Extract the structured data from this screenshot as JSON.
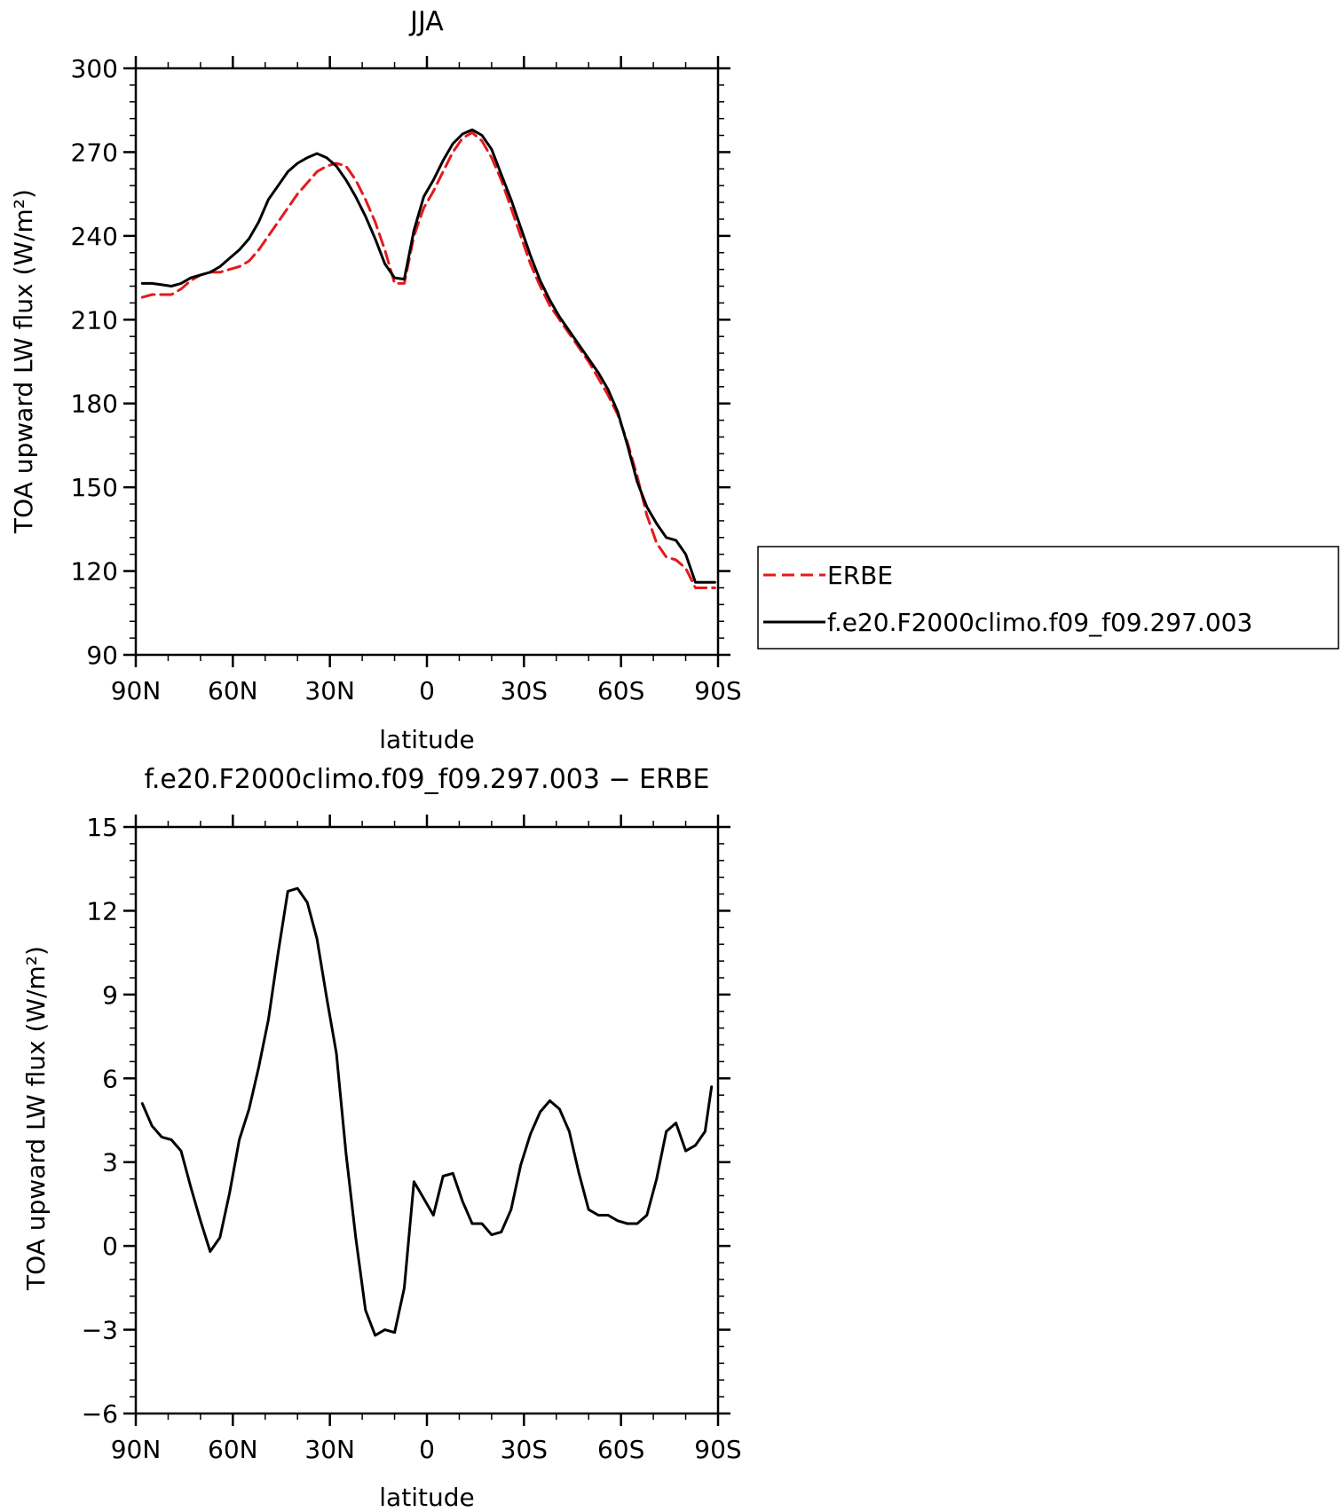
{
  "chart_data": [
    {
      "type": "line",
      "title": "JJA",
      "xlabel": "latitude",
      "ylabel": "TOA upward LW flux (W/m²)",
      "xlim": [
        90,
        -90
      ],
      "ylim": [
        90,
        300
      ],
      "x_ticks": [
        {
          "value": 90,
          "label": "90N"
        },
        {
          "value": 60,
          "label": "60N"
        },
        {
          "value": 30,
          "label": "30N"
        },
        {
          "value": 0,
          "label": "0"
        },
        {
          "value": -30,
          "label": "30S"
        },
        {
          "value": -60,
          "label": "60S"
        },
        {
          "value": -90,
          "label": "90S"
        }
      ],
      "y_ticks": [
        90,
        120,
        150,
        180,
        210,
        240,
        270,
        300
      ],
      "legend_position": "right",
      "series": [
        {
          "name": "ERBE",
          "color": "#e41a1c",
          "dash": "dashed",
          "x": [
            88,
            85,
            82,
            79,
            76,
            73,
            70,
            67,
            64,
            61,
            58,
            55,
            52,
            49,
            46,
            43,
            40,
            37,
            34,
            31,
            28,
            25,
            22,
            19,
            16,
            13,
            10,
            7,
            4,
            1,
            -2,
            -5,
            -8,
            -11,
            -14,
            -17,
            -20,
            -23,
            -26,
            -29,
            -32,
            -35,
            -38,
            -41,
            -44,
            -47,
            -50,
            -53,
            -56,
            -59,
            -62,
            -65,
            -68,
            -71,
            -74,
            -77,
            -80,
            -83,
            -86,
            -89
          ],
          "y": [
            218,
            219,
            219,
            219,
            221,
            224,
            226,
            227,
            227,
            228,
            229,
            231,
            235,
            240,
            245,
            250,
            255,
            259,
            263,
            265,
            266,
            265,
            260,
            253,
            245,
            235,
            223,
            223,
            240,
            250,
            256,
            263,
            270,
            275,
            277,
            274,
            268,
            260,
            250,
            240,
            230,
            222,
            215,
            210,
            205,
            200,
            195,
            189,
            183,
            176,
            166,
            154,
            140,
            130,
            125,
            124,
            121,
            114,
            114,
            114
          ],
          "x_ext": null
        },
        {
          "name": "f.e20.F2000climo.f09_f09.297.003",
          "color": "#000000",
          "dash": "solid",
          "x": [
            88,
            85,
            82,
            79,
            76,
            73,
            70,
            67,
            64,
            61,
            58,
            55,
            52,
            49,
            46,
            43,
            40,
            37,
            34,
            31,
            28,
            25,
            22,
            19,
            16,
            13,
            10,
            7,
            4,
            1,
            -2,
            -5,
            -8,
            -11,
            -14,
            -17,
            -20,
            -23,
            -26,
            -29,
            -32,
            -35,
            -38,
            -41,
            -44,
            -47,
            -50,
            -53,
            -56,
            -59,
            -62,
            -65,
            -68,
            -71,
            -74,
            -77,
            -80,
            -83,
            -86,
            -89
          ],
          "y": [
            223,
            223,
            222.5,
            222,
            223,
            225,
            226,
            227,
            229,
            232,
            235,
            239,
            245,
            253,
            258,
            263,
            266,
            268,
            269.5,
            268,
            265,
            260,
            254,
            247,
            239,
            230,
            225,
            224.5,
            242,
            254,
            260,
            267,
            273,
            276.5,
            278,
            276,
            271,
            262,
            253,
            243,
            233,
            224,
            217,
            211,
            206,
            201,
            196,
            191,
            185,
            177,
            165,
            152,
            143,
            137,
            132,
            131,
            126,
            116,
            116,
            116
          ]
        }
      ]
    },
    {
      "type": "line",
      "title": "f.e20.F2000climo.f09_f09.297.003 − ERBE",
      "xlabel": "latitude",
      "ylabel": "TOA upward LW flux (W/m²)",
      "xlim": [
        90,
        -90
      ],
      "ylim": [
        -6,
        15
      ],
      "x_ticks": [
        {
          "value": 90,
          "label": "90N"
        },
        {
          "value": 60,
          "label": "60N"
        },
        {
          "value": 30,
          "label": "30N"
        },
        {
          "value": 0,
          "label": "0"
        },
        {
          "value": -30,
          "label": "30S"
        },
        {
          "value": -60,
          "label": "60S"
        },
        {
          "value": -90,
          "label": "90S"
        }
      ],
      "y_ticks": [
        -6,
        -3,
        0,
        3,
        6,
        9,
        12,
        15
      ],
      "y_tick_labels": [
        "−6",
        "−3",
        "0",
        "3",
        "6",
        "9",
        "12",
        "15"
      ],
      "series": [
        {
          "name": "",
          "color": "#000000",
          "dash": "solid",
          "x": [
            88,
            85,
            82,
            79,
            76,
            73,
            70,
            67,
            64,
            61,
            58,
            55,
            52,
            49,
            46,
            43,
            40,
            37,
            34,
            31,
            28,
            25,
            22,
            19,
            16,
            13,
            10,
            7,
            4,
            1,
            -2,
            -5,
            -8,
            -11,
            -14,
            -17,
            -20,
            -23,
            -26,
            -29,
            -32,
            -35,
            -38,
            -41,
            -44,
            -47,
            -50,
            -53,
            -56,
            -59,
            -62,
            -65,
            -68,
            -71,
            -74,
            -77,
            -80,
            -83,
            -86,
            -88
          ],
          "y": [
            5.1,
            4.3,
            3.9,
            3.8,
            3.4,
            2.1,
            0.9,
            -0.2,
            0.3,
            1.9,
            3.8,
            4.9,
            6.4,
            8.1,
            10.5,
            12.7,
            12.8,
            12.3,
            11.0,
            8.9,
            6.9,
            3.3,
            0.3,
            -2.3,
            -3.2,
            -3.0,
            -3.1,
            -1.5,
            2.3,
            1.7,
            1.1,
            2.5,
            2.6,
            1.6,
            0.8,
            0.8,
            0.4,
            0.5,
            1.3,
            2.9,
            4.0,
            4.8,
            5.2,
            4.9,
            4.1,
            2.6,
            1.3,
            1.1,
            1.1,
            0.9,
            0.8,
            0.8,
            1.1,
            2.4,
            4.1,
            4.4,
            3.4,
            3.6,
            4.1,
            5.7
          ]
        }
      ]
    }
  ]
}
